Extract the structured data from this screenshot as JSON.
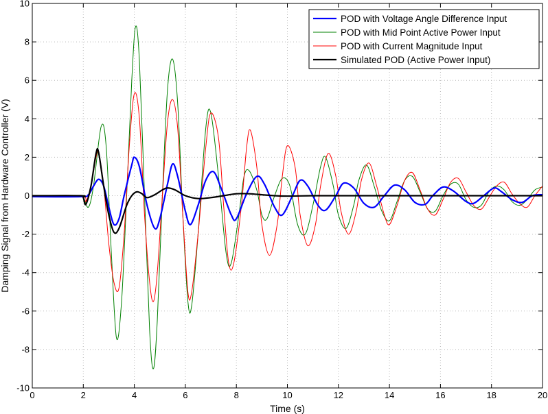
{
  "chart_data": {
    "type": "line",
    "title": "",
    "xlabel": "Time (s)",
    "ylabel": "Damping Signal from Hardware Controller (V)",
    "xlim": [
      0,
      20
    ],
    "ylim": [
      -10,
      10
    ],
    "xticks": [
      0,
      2,
      4,
      6,
      8,
      10,
      12,
      14,
      16,
      18,
      20
    ],
    "yticks": [
      -10,
      -8,
      -6,
      -4,
      -2,
      0,
      2,
      4,
      6,
      8,
      10
    ],
    "xtick_labels": [
      "0",
      "2",
      "4",
      "6",
      "8",
      "10",
      "12",
      "14",
      "16",
      "18",
      "20"
    ],
    "ytick_labels": [
      "-10",
      "-8",
      "-6",
      "-4",
      "-2",
      "0",
      "2",
      "4",
      "6",
      "8",
      "10"
    ],
    "grid": true,
    "legend_position": "top-right",
    "series": [
      {
        "name": "POD with Voltage Angle Difference Input",
        "color": "#0000ff",
        "width": 2.2,
        "points": [
          [
            0,
            -0.05
          ],
          [
            1.9,
            -0.05
          ],
          [
            2.2,
            0.05
          ],
          [
            2.4,
            0.5
          ],
          [
            2.6,
            0.85
          ],
          [
            2.8,
            0.5
          ],
          [
            3.0,
            -0.6
          ],
          [
            3.2,
            -1.5
          ],
          [
            3.4,
            -1.2
          ],
          [
            3.6,
            0.0
          ],
          [
            3.9,
            1.6
          ],
          [
            4.0,
            2.0
          ],
          [
            4.2,
            1.5
          ],
          [
            4.5,
            -0.5
          ],
          [
            4.8,
            -1.7
          ],
          [
            5.0,
            -1.2
          ],
          [
            5.3,
            0.6
          ],
          [
            5.5,
            1.65
          ],
          [
            5.7,
            1.0
          ],
          [
            6.0,
            -0.8
          ],
          [
            6.2,
            -1.5
          ],
          [
            6.5,
            -0.5
          ],
          [
            6.8,
            0.8
          ],
          [
            7.1,
            1.25
          ],
          [
            7.4,
            0.4
          ],
          [
            7.8,
            -1.0
          ],
          [
            8.0,
            -1.2
          ],
          [
            8.4,
            0.1
          ],
          [
            8.8,
            1.0
          ],
          [
            9.1,
            0.6
          ],
          [
            9.5,
            -0.6
          ],
          [
            9.8,
            -1.0
          ],
          [
            10.2,
            0.0
          ],
          [
            10.5,
            0.8
          ],
          [
            10.8,
            0.5
          ],
          [
            11.2,
            -0.5
          ],
          [
            11.5,
            -0.75
          ],
          [
            11.9,
            0.0
          ],
          [
            12.2,
            0.65
          ],
          [
            12.6,
            0.4
          ],
          [
            13.0,
            -0.4
          ],
          [
            13.4,
            -0.6
          ],
          [
            13.8,
            0.0
          ],
          [
            14.2,
            0.55
          ],
          [
            14.6,
            0.3
          ],
          [
            15.0,
            -0.35
          ],
          [
            15.4,
            -0.45
          ],
          [
            15.7,
            0.0
          ],
          [
            16.1,
            0.45
          ],
          [
            16.5,
            0.25
          ],
          [
            17.0,
            -0.3
          ],
          [
            17.3,
            -0.4
          ],
          [
            17.7,
            0.0
          ],
          [
            18.1,
            0.4
          ],
          [
            18.4,
            0.2
          ],
          [
            18.8,
            -0.2
          ],
          [
            19.2,
            -0.35
          ],
          [
            19.6,
            0.0
          ],
          [
            20.0,
            0.05
          ]
        ]
      },
      {
        "name": "POD with Mid Point Active Power Input",
        "color": "#008000",
        "width": 1.0,
        "points": [
          [
            0,
            0.0
          ],
          [
            1.9,
            0.0
          ],
          [
            2.0,
            -0.05
          ],
          [
            2.2,
            -0.6
          ],
          [
            2.4,
            0.5
          ],
          [
            2.7,
            3.6
          ],
          [
            2.9,
            2.5
          ],
          [
            3.1,
            -3.0
          ],
          [
            3.3,
            -7.4
          ],
          [
            3.5,
            -5.5
          ],
          [
            3.7,
            0.0
          ],
          [
            3.9,
            6.0
          ],
          [
            4.05,
            8.8
          ],
          [
            4.2,
            7.0
          ],
          [
            4.4,
            0.0
          ],
          [
            4.6,
            -7.0
          ],
          [
            4.75,
            -9.0
          ],
          [
            4.9,
            -6.5
          ],
          [
            5.1,
            0.0
          ],
          [
            5.3,
            5.5
          ],
          [
            5.5,
            7.1
          ],
          [
            5.7,
            4.8
          ],
          [
            5.9,
            -1.0
          ],
          [
            6.1,
            -5.5
          ],
          [
            6.25,
            -5.7
          ],
          [
            6.5,
            -2.0
          ],
          [
            6.8,
            3.5
          ],
          [
            7.0,
            4.3
          ],
          [
            7.3,
            1.0
          ],
          [
            7.6,
            -3.0
          ],
          [
            7.8,
            -3.5
          ],
          [
            8.1,
            -1.0
          ],
          [
            8.3,
            1.0
          ],
          [
            8.5,
            1.3
          ],
          [
            8.8,
            0.3
          ],
          [
            9.0,
            -1.0
          ],
          [
            9.2,
            -1.2
          ],
          [
            9.5,
            0.0
          ],
          [
            9.8,
            0.9
          ],
          [
            10.1,
            0.5
          ],
          [
            10.4,
            -1.5
          ],
          [
            10.7,
            -2.0
          ],
          [
            11.0,
            -0.5
          ],
          [
            11.3,
            1.5
          ],
          [
            11.5,
            2.0
          ],
          [
            11.8,
            0.5
          ],
          [
            12.0,
            -1.0
          ],
          [
            12.3,
            -1.7
          ],
          [
            12.6,
            -0.5
          ],
          [
            12.8,
            0.8
          ],
          [
            13.1,
            1.6
          ],
          [
            13.4,
            0.5
          ],
          [
            13.7,
            -0.8
          ],
          [
            14.0,
            -1.3
          ],
          [
            14.3,
            -0.3
          ],
          [
            14.6,
            0.8
          ],
          [
            14.9,
            1.0
          ],
          [
            15.2,
            0.2
          ],
          [
            15.5,
            -0.7
          ],
          [
            15.8,
            -0.8
          ],
          [
            16.1,
            0.0
          ],
          [
            16.4,
            0.6
          ],
          [
            16.7,
            0.6
          ],
          [
            17.0,
            -0.2
          ],
          [
            17.3,
            -0.6
          ],
          [
            17.6,
            -0.5
          ],
          [
            17.9,
            0.2
          ],
          [
            18.2,
            0.5
          ],
          [
            18.5,
            0.3
          ],
          [
            18.8,
            -0.3
          ],
          [
            19.1,
            -0.5
          ],
          [
            19.4,
            -0.2
          ],
          [
            19.7,
            0.3
          ],
          [
            20.0,
            0.45
          ]
        ]
      },
      {
        "name": "POD with Current Magnitude Input",
        "color": "#ff0000",
        "width": 1.0,
        "points": [
          [
            0,
            0.0
          ],
          [
            1.9,
            0.0
          ],
          [
            2.1,
            -0.3
          ],
          [
            2.3,
            0.5
          ],
          [
            2.5,
            2.0
          ],
          [
            2.6,
            2.2
          ],
          [
            2.8,
            0.5
          ],
          [
            3.0,
            -2.5
          ],
          [
            3.2,
            -4.5
          ],
          [
            3.4,
            -4.8
          ],
          [
            3.6,
            -2.0
          ],
          [
            3.8,
            2.5
          ],
          [
            4.0,
            5.3
          ],
          [
            4.2,
            4.0
          ],
          [
            4.4,
            -1.0
          ],
          [
            4.6,
            -4.5
          ],
          [
            4.75,
            -5.5
          ],
          [
            4.9,
            -4.0
          ],
          [
            5.1,
            0.0
          ],
          [
            5.3,
            3.8
          ],
          [
            5.5,
            5.0
          ],
          [
            5.7,
            3.5
          ],
          [
            5.9,
            -1.0
          ],
          [
            6.1,
            -5.0
          ],
          [
            6.25,
            -5.0
          ],
          [
            6.5,
            -2.0
          ],
          [
            6.8,
            2.5
          ],
          [
            7.0,
            4.3
          ],
          [
            7.3,
            3.0
          ],
          [
            7.5,
            -0.5
          ],
          [
            7.7,
            -3.5
          ],
          [
            7.9,
            -3.5
          ],
          [
            8.2,
            -0.5
          ],
          [
            8.4,
            2.5
          ],
          [
            8.55,
            3.4
          ],
          [
            8.8,
            1.5
          ],
          [
            9.0,
            -1.5
          ],
          [
            9.3,
            -3.1
          ],
          [
            9.6,
            -1.5
          ],
          [
            9.8,
            1.0
          ],
          [
            10.0,
            2.6
          ],
          [
            10.3,
            1.5
          ],
          [
            10.5,
            -1.0
          ],
          [
            10.8,
            -2.6
          ],
          [
            11.1,
            -1.5
          ],
          [
            11.3,
            0.5
          ],
          [
            11.6,
            2.2
          ],
          [
            11.9,
            1.0
          ],
          [
            12.1,
            -0.8
          ],
          [
            12.4,
            -2.0
          ],
          [
            12.7,
            -0.8
          ],
          [
            12.9,
            0.8
          ],
          [
            13.2,
            1.7
          ],
          [
            13.5,
            0.5
          ],
          [
            13.8,
            -1.0
          ],
          [
            14.0,
            -1.5
          ],
          [
            14.3,
            -0.5
          ],
          [
            14.6,
            0.8
          ],
          [
            14.9,
            1.2
          ],
          [
            15.2,
            0.3
          ],
          [
            15.5,
            -0.7
          ],
          [
            15.8,
            -1.0
          ],
          [
            16.1,
            -0.2
          ],
          [
            16.4,
            0.7
          ],
          [
            16.7,
            0.9
          ],
          [
            17.0,
            0.2
          ],
          [
            17.3,
            -0.5
          ],
          [
            17.6,
            -0.7
          ],
          [
            17.9,
            -0.1
          ],
          [
            18.2,
            0.5
          ],
          [
            18.5,
            0.7
          ],
          [
            18.8,
            0.1
          ],
          [
            19.1,
            -0.4
          ],
          [
            19.4,
            -0.6
          ],
          [
            19.7,
            0.0
          ],
          [
            20.0,
            0.5
          ]
        ]
      },
      {
        "name": "Simulated POD (Active Power Input)",
        "color": "#000000",
        "width": 2.2,
        "points": [
          [
            0,
            0.0
          ],
          [
            1.9,
            0.0
          ],
          [
            2.0,
            -0.1
          ],
          [
            2.1,
            -0.45
          ],
          [
            2.3,
            0.5
          ],
          [
            2.5,
            2.2
          ],
          [
            2.6,
            2.25
          ],
          [
            2.8,
            0.5
          ],
          [
            3.0,
            -1.0
          ],
          [
            3.2,
            -1.9
          ],
          [
            3.4,
            -1.7
          ],
          [
            3.7,
            -0.5
          ],
          [
            3.9,
            0.0
          ],
          [
            4.1,
            0.2
          ],
          [
            4.3,
            0.1
          ],
          [
            4.5,
            -0.1
          ],
          [
            4.8,
            0.05
          ],
          [
            5.1,
            0.3
          ],
          [
            5.3,
            0.4
          ],
          [
            5.6,
            0.3
          ],
          [
            6.0,
            0.0
          ],
          [
            6.5,
            -0.15
          ],
          [
            7.0,
            -0.1
          ],
          [
            7.5,
            0.0
          ],
          [
            8.0,
            0.1
          ],
          [
            8.5,
            0.1
          ],
          [
            9.0,
            0.05
          ],
          [
            9.5,
            0.0
          ],
          [
            10.0,
            -0.02
          ],
          [
            11.0,
            0.0
          ],
          [
            12.0,
            0.0
          ],
          [
            13.0,
            0.0
          ],
          [
            14.0,
            0.0
          ],
          [
            15.0,
            0.0
          ],
          [
            16.0,
            0.0
          ],
          [
            17.0,
            0.0
          ],
          [
            18.0,
            0.0
          ],
          [
            19.0,
            0.0
          ],
          [
            20.0,
            0.0
          ]
        ]
      }
    ]
  }
}
